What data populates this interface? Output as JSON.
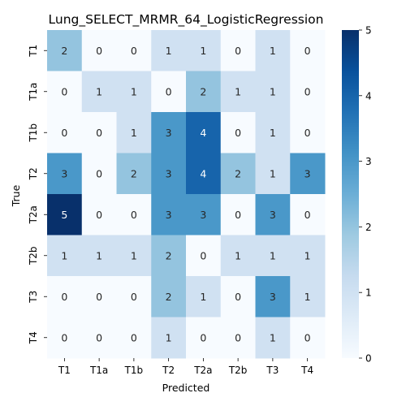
{
  "chart_data": {
    "type": "heatmap",
    "title": "Lung_SELECT_MRMR_64_LogisticRegression",
    "xlabel": "Predicted",
    "ylabel": "True",
    "x_categories": [
      "T1",
      "T1a",
      "T1b",
      "T2",
      "T2a",
      "T2b",
      "T3",
      "T4"
    ],
    "y_categories": [
      "T1",
      "T1a",
      "T1b",
      "T2",
      "T2a",
      "T2b",
      "T3",
      "T4"
    ],
    "values": [
      [
        2,
        0,
        0,
        1,
        1,
        0,
        1,
        0
      ],
      [
        0,
        1,
        1,
        0,
        2,
        1,
        1,
        0
      ],
      [
        0,
        0,
        1,
        3,
        4,
        0,
        1,
        0
      ],
      [
        3,
        0,
        2,
        3,
        4,
        2,
        1,
        3
      ],
      [
        5,
        0,
        0,
        3,
        3,
        0,
        3,
        0
      ],
      [
        1,
        1,
        1,
        2,
        0,
        1,
        1,
        1
      ],
      [
        0,
        0,
        0,
        2,
        1,
        0,
        3,
        1
      ],
      [
        0,
        0,
        0,
        1,
        0,
        0,
        1,
        0
      ]
    ],
    "vmin": 0,
    "vmax": 5,
    "colormap": "Blues",
    "colorbar_ticks": [
      0,
      1,
      2,
      3,
      4,
      5
    ]
  }
}
